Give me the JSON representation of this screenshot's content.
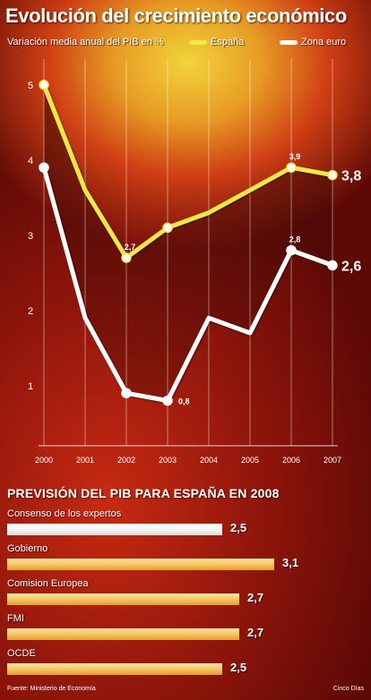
{
  "header": {
    "title": "Evolución del crecimiento económico",
    "subtitle": "Variación media anual del PIB en %"
  },
  "legend": [
    {
      "name": "España",
      "color": "#f0e84a"
    },
    {
      "name": "Zona euro",
      "color": "#ffffff"
    }
  ],
  "chart_data": [
    {
      "type": "line",
      "title": "Evolución del crecimiento económico",
      "subtitle": "Variación media anual del PIB en %",
      "x": [
        "2000",
        "2001",
        "2002",
        "2003",
        "2004",
        "2005",
        "2006",
        "2007"
      ],
      "series": [
        {
          "name": "España",
          "color": "#f0e84a",
          "values": [
            5.0,
            3.6,
            2.7,
            3.1,
            3.3,
            3.6,
            3.9,
            3.8
          ]
        },
        {
          "name": "Zona euro",
          "color": "#ffffff",
          "values": [
            3.9,
            1.9,
            0.9,
            0.8,
            1.9,
            1.7,
            2.8,
            2.6
          ]
        }
      ],
      "data_labels": [
        {
          "series": "España",
          "x": "2002",
          "text": "2,7",
          "role": "point"
        },
        {
          "series": "España",
          "x": "2006",
          "text": "3,9",
          "role": "point"
        },
        {
          "series": "España",
          "x": "2007",
          "text": "3,8",
          "role": "end"
        },
        {
          "series": "Zona euro",
          "x": "2003",
          "text": "0,8",
          "role": "point"
        },
        {
          "series": "Zona euro",
          "x": "2006",
          "text": "2,8",
          "role": "point"
        },
        {
          "series": "Zona euro",
          "x": "2007",
          "text": "2,6",
          "role": "end"
        }
      ],
      "yticks": [
        {
          "value": 5,
          "label": "5"
        },
        {
          "value": 4,
          "label": "4"
        },
        {
          "value": 3,
          "label": "3"
        },
        {
          "value": 2,
          "label": "2"
        },
        {
          "value": 1,
          "label": "1"
        }
      ],
      "ylim": [
        0.2,
        5.2
      ],
      "grid": "vertical",
      "legend_position": "top-right"
    },
    {
      "type": "bar",
      "orientation": "horizontal",
      "title": "PREVISIÓN DEL PIB PARA ESPAÑA EN 2008",
      "categories": [
        "Consenso de los expertos",
        "Gobierno",
        "Comision Europea",
        "FMI",
        "OCDE"
      ],
      "values": [
        2.5,
        3.1,
        2.7,
        2.7,
        2.5
      ],
      "value_labels": [
        "2,5",
        "3,1",
        "2,7",
        "2,7",
        "2,5"
      ],
      "highlight": {
        "category": "Consenso de los expertos",
        "color": "#ffffff"
      },
      "bar_color": "#f4c25c",
      "xlim": [
        0,
        3.3
      ]
    }
  ],
  "footer": {
    "source": "Fuente: Ministerio de Economía",
    "credit": "Cinco Días"
  }
}
